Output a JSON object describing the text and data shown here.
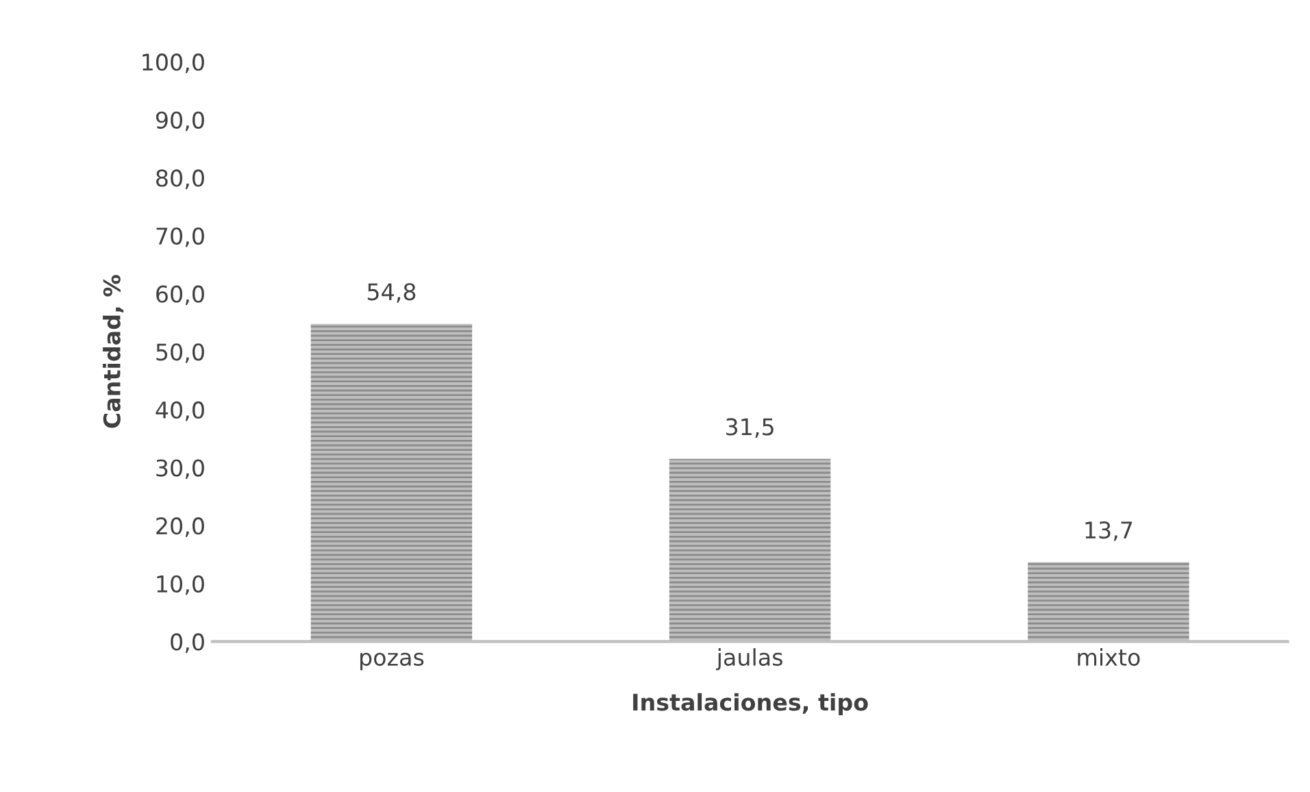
{
  "chart_data": {
    "type": "bar",
    "xlabel": "Instalaciones, tipo",
    "ylabel": "Cantidad, %",
    "categories": [
      "pozas",
      "jaulas",
      "mixto"
    ],
    "values": [
      54.8,
      31.5,
      13.7
    ],
    "value_labels": [
      "54,8",
      "31,5",
      "13,7"
    ],
    "color": "#bfbfbf",
    "ylim": [
      0,
      100
    ],
    "yticks": [
      {
        "value": 0,
        "label": "0,0"
      },
      {
        "value": 10,
        "label": "10,0"
      },
      {
        "value": 20,
        "label": "20,0"
      },
      {
        "value": 30,
        "label": "30,0"
      },
      {
        "value": 40,
        "label": "40,0"
      },
      {
        "value": 50,
        "label": "50,0"
      },
      {
        "value": 60,
        "label": "60,0"
      },
      {
        "value": 70,
        "label": "70,0"
      },
      {
        "value": 80,
        "label": "80,0"
      },
      {
        "value": 90,
        "label": "90,0"
      },
      {
        "value": 100,
        "label": "100,0"
      }
    ],
    "grid": false,
    "legend": false
  }
}
